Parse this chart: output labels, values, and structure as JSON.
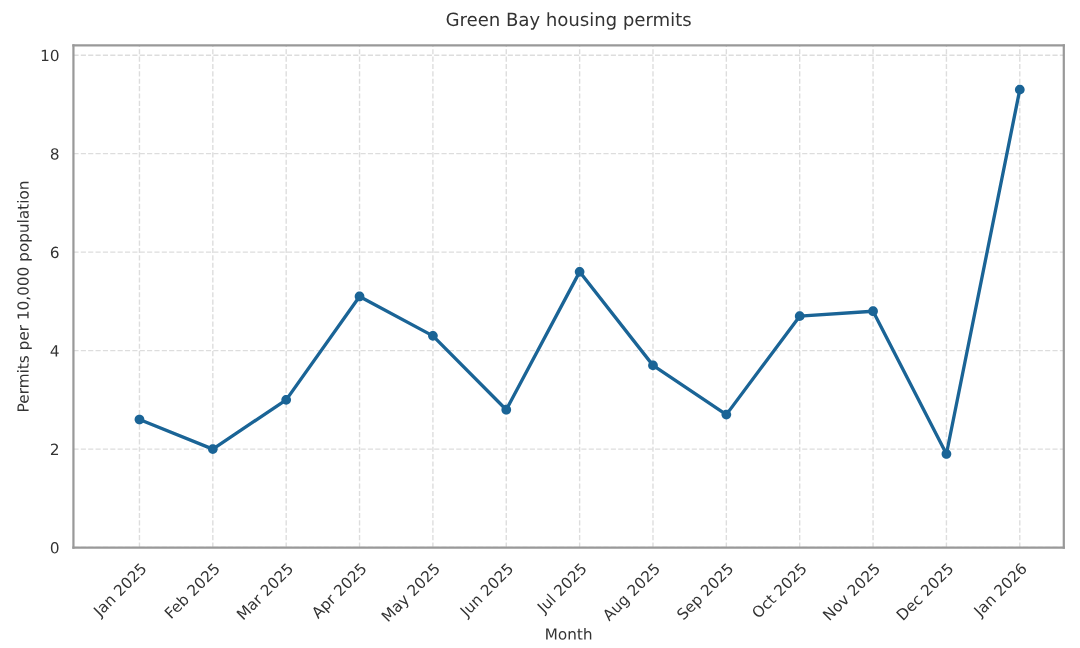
{
  "chart_data": {
    "type": "line",
    "title": "Green Bay housing permits",
    "xlabel": "Month",
    "ylabel": "Permits per 10,000 population",
    "categories": [
      "Jan 2025",
      "Feb 2025",
      "Mar 2025",
      "Apr 2025",
      "May 2025",
      "Jun 2025",
      "Jul 2025",
      "Aug 2025",
      "Sep 2025",
      "Oct 2025",
      "Nov 2025",
      "Dec 2025",
      "Jan 2026"
    ],
    "series": [
      {
        "color": "#1a6496",
        "values": [
          2.6,
          2.0,
          3.0,
          5.1,
          4.3,
          2.8,
          5.6,
          3.7,
          2.7,
          4.7,
          4.8,
          1.9,
          9.3
        ]
      }
    ],
    "ylim": [
      0,
      10.2
    ],
    "yticks": [
      0,
      2,
      4,
      6,
      8,
      10
    ],
    "grid": true,
    "marker": "circle",
    "line_style": "solid"
  }
}
